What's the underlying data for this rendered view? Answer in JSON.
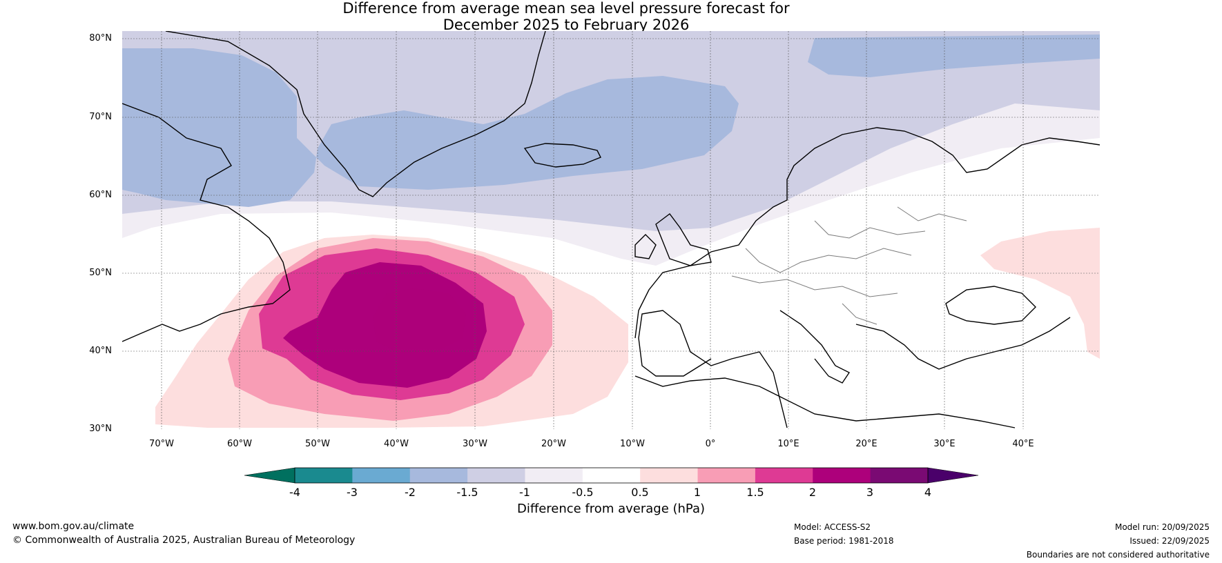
{
  "title_line1": "Difference from average mean sea level pressure forecast for",
  "title_line2": "December 2025 to February 2026",
  "lat_labels": [
    "80°N",
    "70°N",
    "60°N",
    "50°N",
    "40°N",
    "30°N"
  ],
  "lon_labels": [
    "70°W",
    "60°W",
    "50°W",
    "40°W",
    "30°W",
    "20°W",
    "10°W",
    "0°",
    "10°E",
    "20°E",
    "30°E",
    "40°E"
  ],
  "colorbar": {
    "label": "Difference from average (hPa)",
    "ticks": [
      "-4",
      "-3",
      "-2",
      "-1.5",
      "-1",
      "-0.5",
      "0.5",
      "1",
      "1.5",
      "2",
      "3",
      "4"
    ],
    "colors": [
      "#1a8a8f",
      "#6aaad2",
      "#a7b9dd",
      "#cfcfe4",
      "#f1edf4",
      "#ffffff",
      "#fddede",
      "#f89db5",
      "#de3a94",
      "#ad007b",
      "#7a0a73"
    ],
    "under_color": "#00705f",
    "over_color": "#4a006a"
  },
  "footer": {
    "website": "www.bom.gov.au/climate",
    "copyright": "© Commonwealth of Australia 2025, Australian Bureau of Meteorology",
    "model": "Model: ACCESS-S2",
    "base_period": "Base period: 1981-2018",
    "model_run": "Model run: 20/09/2025",
    "issued": "Issued: 22/09/2025",
    "disclaimer": "Boundaries are not considered authoritative"
  }
}
